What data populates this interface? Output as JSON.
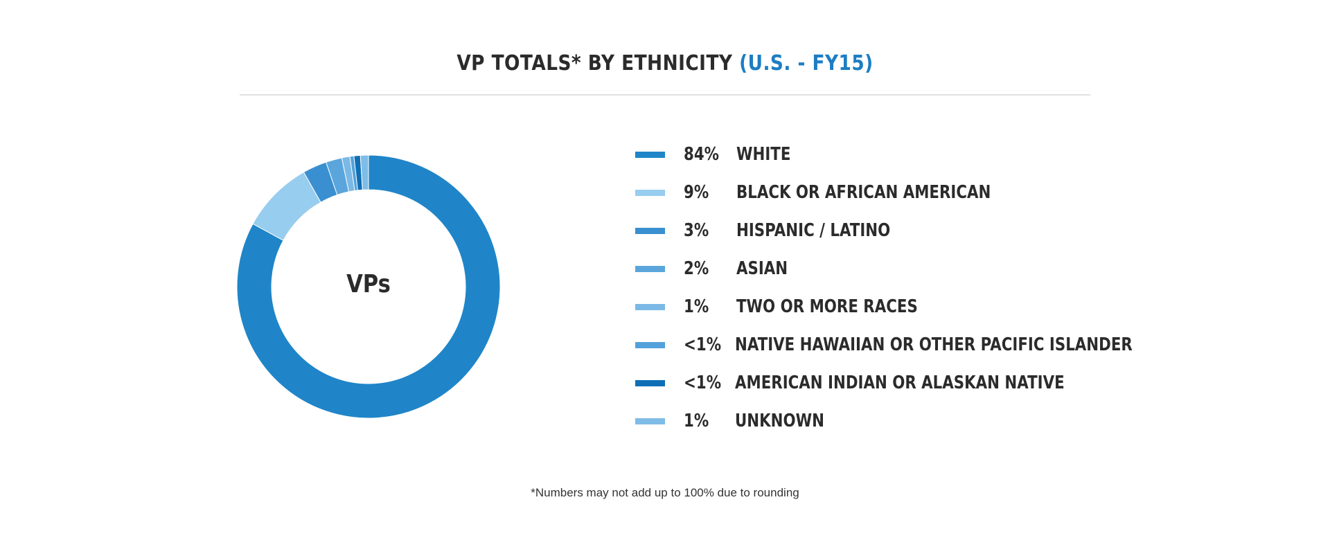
{
  "title": {
    "main": "VP TOTALS* BY ETHNICITY",
    "accent": "(U.S. - FY15)"
  },
  "footnote": "*Numbers may not add up to 100% due to rounding",
  "colors": {
    "accent": "#1d7dc3",
    "text": "#2b2b2b",
    "rule": "#e2e2e2"
  },
  "chart_data": {
    "type": "pie",
    "style": "donut",
    "center_label": "VPs",
    "slices": [
      {
        "pct_label": "84%",
        "label": "WHITE",
        "value": 84,
        "color": "#1f85c8"
      },
      {
        "pct_label": "9%",
        "label": "BLACK OR AFRICAN AMERICAN",
        "value": 9,
        "color": "#97cdee"
      },
      {
        "pct_label": "3%",
        "label": "HISPANIC / LATINO",
        "value": 3,
        "color": "#3a8fd0"
      },
      {
        "pct_label": "2%",
        "label": "ASIAN",
        "value": 2,
        "color": "#5aa6dc"
      },
      {
        "pct_label": "1%",
        "label": "TWO OR MORE RACES",
        "value": 1,
        "color": "#7ab9e5"
      },
      {
        "pct_label": "<1%",
        "label": "NATIVE HAWAIIAN OR OTHER PACIFIC ISLANDER",
        "value": 0.5,
        "color": "#53a1da"
      },
      {
        "pct_label": "<1%",
        "label": "AMERICAN INDIAN OR ALASKAN NATIVE",
        "value": 0.8,
        "color": "#0f6fb5"
      },
      {
        "pct_label": "1%",
        "label": "UNKNOWN",
        "value": 1,
        "color": "#7fbde7"
      }
    ]
  }
}
